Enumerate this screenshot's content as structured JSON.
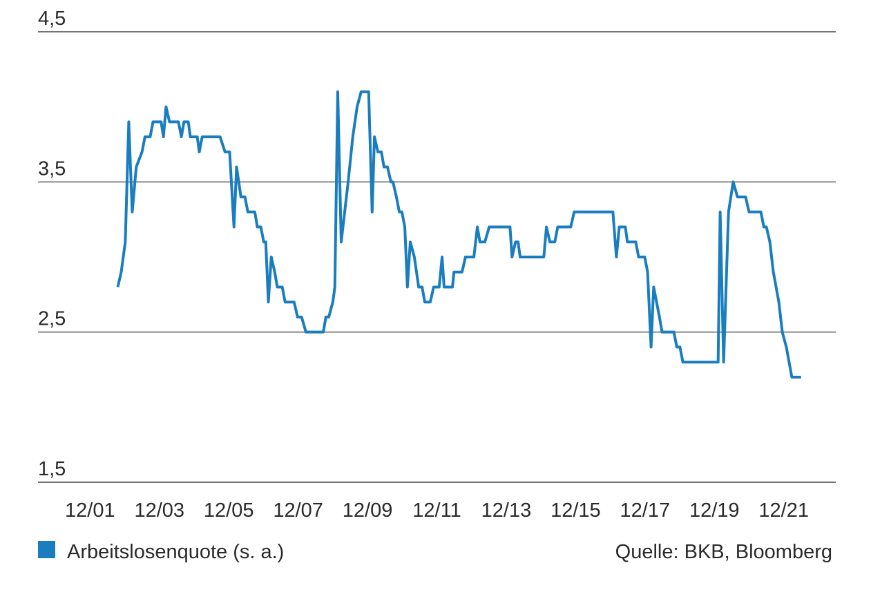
{
  "chart_data": {
    "type": "line",
    "legend": "bottom-left",
    "source": "Quelle: BKB, Bloomberg",
    "xlim": [
      -18,
      258
    ],
    "xticks": [
      {
        "value": 0,
        "label": "12/01"
      },
      {
        "value": 24,
        "label": "12/03"
      },
      {
        "value": 48,
        "label": "12/05"
      },
      {
        "value": 72,
        "label": "12/07"
      },
      {
        "value": 96,
        "label": "12/09"
      },
      {
        "value": 120,
        "label": "12/11"
      },
      {
        "value": 144,
        "label": "12/13"
      },
      {
        "value": 168,
        "label": "12/15"
      },
      {
        "value": 192,
        "label": "12/17"
      },
      {
        "value": 216,
        "label": "12/19"
      },
      {
        "value": 240,
        "label": "12/21"
      }
    ],
    "ylim": [
      1.5,
      4.5
    ],
    "yticks": [
      {
        "value": 1.5,
        "label": "1,5"
      },
      {
        "value": 2.5,
        "label": "2,5"
      },
      {
        "value": 3.5,
        "label": "3,5"
      },
      {
        "value": 4.5,
        "label": "4,5"
      }
    ],
    "grid": true,
    "x": [
      9.6,
      10.8,
      12.2,
      13.4,
      14.6,
      16,
      18,
      19,
      20.8,
      21.8,
      24.6,
      25.4,
      26.3,
      27.5,
      30.6,
      31.6,
      32.5,
      34,
      34.7,
      37.1,
      37.8,
      38.8,
      45,
      46.7,
      48.3,
      49.8,
      50.7,
      52.2,
      53.6,
      54.6,
      57,
      57.9,
      59.1,
      60.1,
      60.8,
      61.7,
      62.7,
      63.9,
      64.8,
      66.5,
      67.5,
      70.6,
      71.8,
      73.2,
      74.7,
      80.7,
      81.6,
      82.6,
      84,
      84.7,
      85.7,
      86.9,
      88.1,
      89.3,
      90.9,
      92.4,
      93.8,
      96.4,
      97.6,
      98.4,
      99.6,
      100.8,
      101.7,
      102.9,
      104.1,
      104.8,
      106,
      107,
      107.9,
      108.9,
      109.8,
      110.8,
      112.2,
      113.7,
      114.9,
      115.8,
      117.7,
      118.9,
      120.8,
      121.8,
      122.5,
      125.4,
      125.9,
      128.7,
      129.9,
      132.8,
      134,
      134.9,
      136.6,
      138.1,
      145.3,
      146,
      147.2,
      148.1,
      148.8,
      157,
      157.9,
      159.1,
      160.8,
      161.8,
      166.3,
      167.5,
      180.9,
      182.1,
      183.1,
      185.2,
      185.9,
      188.8,
      189.8,
      191.9,
      192.9,
      194.1,
      195,
      197,
      197.9,
      202,
      203,
      204.1,
      205.1,
      217.3,
      218,
      219.2,
      220.9,
      222.5,
      224,
      226.8,
      228,
      232.1,
      233.1,
      234,
      235.2,
      236.4,
      238.3,
      239.5,
      240.9,
      242.8,
      246
    ],
    "series": [
      {
        "name": "Arbeitslosenquote (s. a.)",
        "color": "#1a7dc0",
        "values": [
          2.8,
          2.9,
          3.1,
          3.9,
          3.3,
          3.6,
          3.7,
          3.8,
          3.8,
          3.9,
          3.9,
          3.8,
          4.0,
          3.9,
          3.9,
          3.8,
          3.9,
          3.9,
          3.8,
          3.8,
          3.7,
          3.8,
          3.8,
          3.7,
          3.7,
          3.2,
          3.6,
          3.4,
          3.4,
          3.3,
          3.3,
          3.2,
          3.2,
          3.1,
          3.1,
          2.7,
          3.0,
          2.9,
          2.8,
          2.8,
          2.7,
          2.7,
          2.6,
          2.6,
          2.5,
          2.5,
          2.6,
          2.6,
          2.7,
          2.8,
          4.1,
          3.1,
          3.3,
          3.5,
          3.8,
          4.0,
          4.1,
          4.1,
          3.3,
          3.8,
          3.7,
          3.7,
          3.6,
          3.6,
          3.5,
          3.5,
          3.4,
          3.3,
          3.3,
          3.2,
          2.8,
          3.1,
          3.0,
          2.8,
          2.8,
          2.7,
          2.7,
          2.8,
          2.8,
          3.0,
          2.8,
          2.8,
          2.9,
          2.9,
          3.0,
          3.0,
          3.2,
          3.1,
          3.1,
          3.2,
          3.2,
          3.0,
          3.1,
          3.1,
          3.0,
          3.0,
          3.2,
          3.1,
          3.1,
          3.2,
          3.2,
          3.3,
          3.3,
          3.0,
          3.2,
          3.2,
          3.1,
          3.1,
          3.0,
          3.0,
          2.9,
          2.4,
          2.8,
          2.6,
          2.5,
          2.5,
          2.4,
          2.4,
          2.3,
          2.3,
          3.3,
          2.3,
          3.3,
          3.5,
          3.4,
          3.4,
          3.3,
          3.3,
          3.2,
          3.2,
          3.1,
          2.9,
          2.7,
          2.5,
          2.4,
          2.2,
          2.2
        ]
      }
    ]
  }
}
